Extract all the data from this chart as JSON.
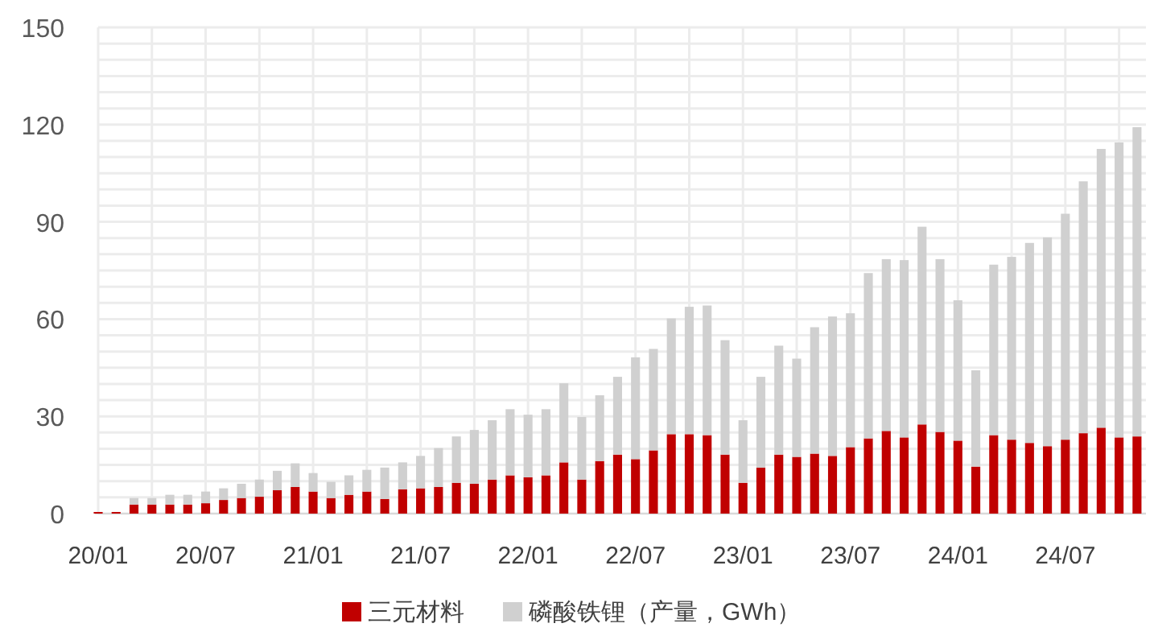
{
  "chart_data": {
    "type": "bar",
    "stacked": true,
    "categories": [
      "20/01",
      null,
      null,
      null,
      null,
      null,
      "20/07",
      null,
      null,
      null,
      null,
      null,
      "21/01",
      null,
      null,
      null,
      null,
      null,
      "21/07",
      null,
      null,
      null,
      null,
      null,
      "22/01",
      null,
      null,
      null,
      null,
      null,
      "22/07",
      null,
      null,
      null,
      null,
      null,
      "23/01",
      null,
      null,
      null,
      null,
      null,
      "23/07",
      null,
      null,
      null,
      null,
      null,
      "24/01",
      null,
      null,
      null,
      null,
      null,
      "24/07",
      null,
      null,
      null,
      null
    ],
    "series": [
      {
        "name": "三元材料",
        "color": "#c00000",
        "values": [
          0.5,
          0.5,
          2.8,
          2.8,
          2.8,
          2.8,
          3.2,
          4.2,
          4.8,
          5.2,
          7.2,
          8.2,
          6.8,
          4.8,
          5.8,
          6.8,
          4.5,
          7.5,
          7.8,
          8.2,
          9.5,
          9.2,
          10.5,
          11.8,
          11.2,
          11.8,
          15.8,
          10.5,
          16.2,
          18.2,
          16.8,
          19.5,
          24.5,
          24.5,
          24.2,
          18.2,
          9.5,
          14.2,
          18.2,
          17.5,
          18.5,
          17.8,
          20.5,
          23.2,
          25.5,
          23.5,
          27.5,
          25.2,
          22.5,
          14.5,
          24.2,
          22.8,
          21.8,
          20.8,
          22.8,
          24.8,
          26.5,
          23.5,
          23.8
        ]
      },
      {
        "name": "磷酸铁锂（产量，GWh）",
        "color": "#d0d0d0",
        "values": [
          null,
          null,
          2.0,
          2.0,
          3.0,
          3.0,
          3.6,
          3.6,
          4.4,
          5.3,
          6.0,
          7.3,
          5.7,
          5.0,
          6.0,
          6.7,
          9.7,
          8.3,
          10.0,
          12.0,
          14.3,
          16.6,
          18.3,
          20.4,
          19.3,
          20.4,
          24.4,
          19.3,
          20.3,
          24.0,
          31.4,
          31.3,
          35.7,
          39.3,
          40.0,
          35.3,
          19.3,
          28.0,
          33.6,
          30.3,
          39.0,
          43.0,
          41.3,
          51.0,
          53.0,
          54.7,
          61.0,
          53.3,
          43.3,
          29.7,
          52.6,
          56.4,
          61.7,
          64.4,
          69.7,
          77.7,
          86.0,
          91.0,
          95.4
        ]
      }
    ],
    "ylim": [
      0,
      150
    ],
    "yticks": [
      0,
      {
        "value": 5,
        "label": null
      },
      {
        "value": 10,
        "label": null
      },
      {
        "value": 15,
        "label": null
      },
      {
        "value": 20,
        "label": null
      },
      {
        "value": 25,
        "label": null
      },
      30,
      {
        "value": 35,
        "label": null
      },
      {
        "value": 40,
        "label": null
      },
      {
        "value": 45,
        "label": null
      },
      {
        "value": 50,
        "label": null
      },
      {
        "value": 55,
        "label": null
      },
      60,
      {
        "value": 65,
        "label": null
      },
      {
        "value": 70,
        "label": null
      },
      {
        "value": 75,
        "label": null
      },
      {
        "value": 80,
        "label": null
      },
      {
        "value": 85,
        "label": null
      },
      90,
      {
        "value": 95,
        "label": null
      },
      {
        "value": 100,
        "label": null
      },
      {
        "value": 105,
        "label": null
      },
      {
        "value": 110,
        "label": null
      },
      {
        "value": 115,
        "label": null
      },
      120,
      {
        "value": 125,
        "label": null
      },
      {
        "value": 130,
        "label": null
      },
      {
        "value": 135,
        "label": null
      },
      {
        "value": 140,
        "label": null
      },
      {
        "value": 145,
        "label": null
      },
      150
    ],
    "grid": true,
    "legend": "bottom"
  }
}
